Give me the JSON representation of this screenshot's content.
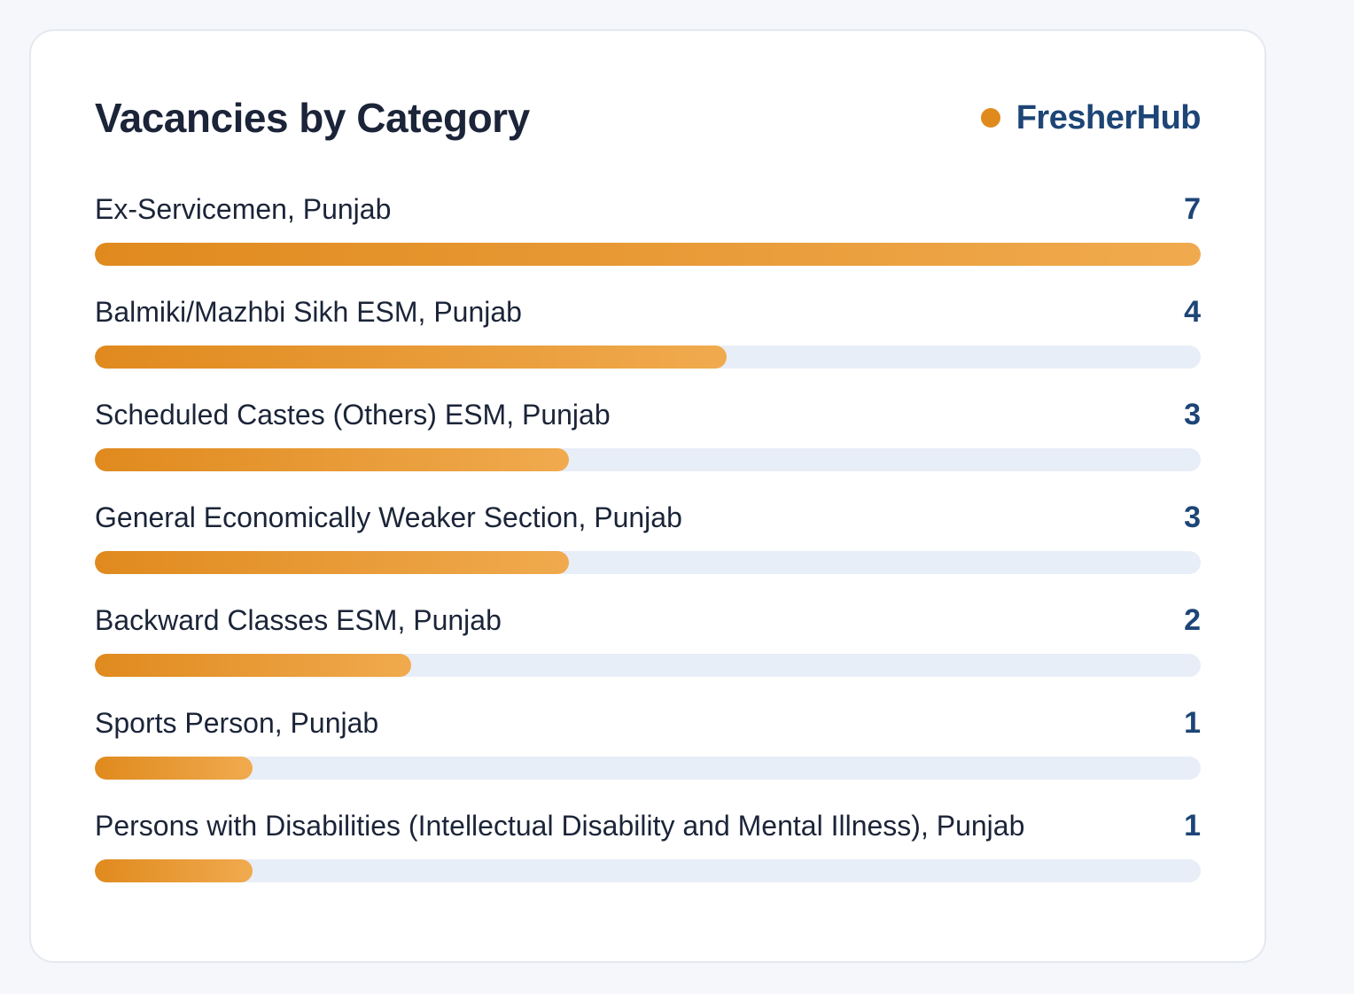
{
  "card": {
    "title": "Vacancies by Category",
    "brand": "FresherHub"
  },
  "colors": {
    "accent": "#e08a1e",
    "accent_light": "#f0aa4e",
    "brand_text": "#1d4576",
    "value_text": "#1d4576",
    "track": "#e8eef8"
  },
  "chart_data": {
    "type": "bar",
    "orientation": "horizontal",
    "title": "Vacancies by Category",
    "categories": [
      "Ex-Servicemen, Punjab",
      "Balmiki/Mazhbi Sikh ESM, Punjab",
      "Scheduled Castes (Others) ESM, Punjab",
      "General Economically Weaker Section, Punjab",
      "Backward Classes ESM, Punjab",
      "Sports Person, Punjab",
      "Persons with Disabilities (Intellectual Disability and Mental Illness), Punjab"
    ],
    "values": [
      7,
      4,
      3,
      3,
      2,
      1,
      1
    ],
    "xlim": [
      0,
      7
    ],
    "grid": false
  }
}
